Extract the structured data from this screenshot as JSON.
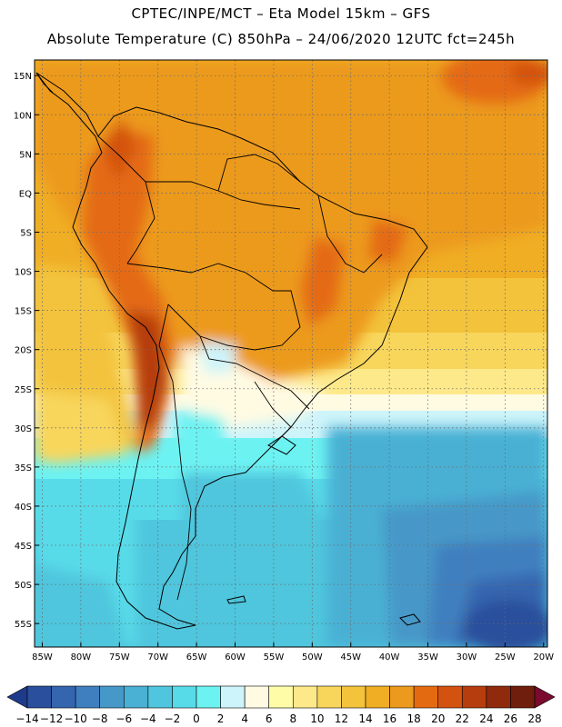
{
  "header": {
    "line1": "CPTEC/INPE/MCT –  Eta Model 15km – GFS",
    "line2": "Absolute Temperature (C) 850hPa – 24/06/2020 12UTC fct=245h"
  },
  "map": {
    "lon_range": [
      -86,
      -19.5
    ],
    "lat_range": [
      -58,
      17
    ],
    "lon_ticks": [
      "85W",
      "80W",
      "75W",
      "70W",
      "65W",
      "60W",
      "55W",
      "50W",
      "45W",
      "40W",
      "35W",
      "30W",
      "25W",
      "20W"
    ],
    "lat_ticks": [
      "15N",
      "10N",
      "5N",
      "EQ",
      "5S",
      "10S",
      "15S",
      "20S",
      "25S",
      "30S",
      "35S",
      "40S",
      "45S",
      "50S",
      "55S"
    ],
    "lon_values": [
      -85,
      -80,
      -75,
      -70,
      -65,
      -60,
      -55,
      -50,
      -45,
      -40,
      -35,
      -30,
      -25,
      -20
    ],
    "lat_values": [
      15,
      10,
      5,
      0,
      -5,
      -10,
      -15,
      -20,
      -25,
      -30,
      -35,
      -40,
      -45,
      -50,
      -55
    ],
    "field_description": "850hPa temperature shading",
    "grid": "dotted"
  },
  "colorbar": {
    "labels": [
      "-14",
      "-12",
      "-10",
      "-8",
      "-6",
      "-4",
      "-2",
      "0",
      "2",
      "4",
      "6",
      "8",
      "10",
      "12",
      "14",
      "16",
      "18",
      "20",
      "22",
      "24",
      "26",
      "28"
    ],
    "colors": [
      "#1e3a8a",
      "#2a4f9c",
      "#3565ae",
      "#3f7fbf",
      "#4698c8",
      "#4ab0d4",
      "#4fc6dd",
      "#58dbe9",
      "#6df2f2",
      "#cdf4fa",
      "#fffbe3",
      "#fffca8",
      "#fde98a",
      "#f8d65c",
      "#f3c33c",
      "#f0ae25",
      "#ec9a1e",
      "#e46a12",
      "#d45210",
      "#b63d0e",
      "#8f2a0c",
      "#6f1d0c",
      "#7a0a2e"
    ]
  }
}
